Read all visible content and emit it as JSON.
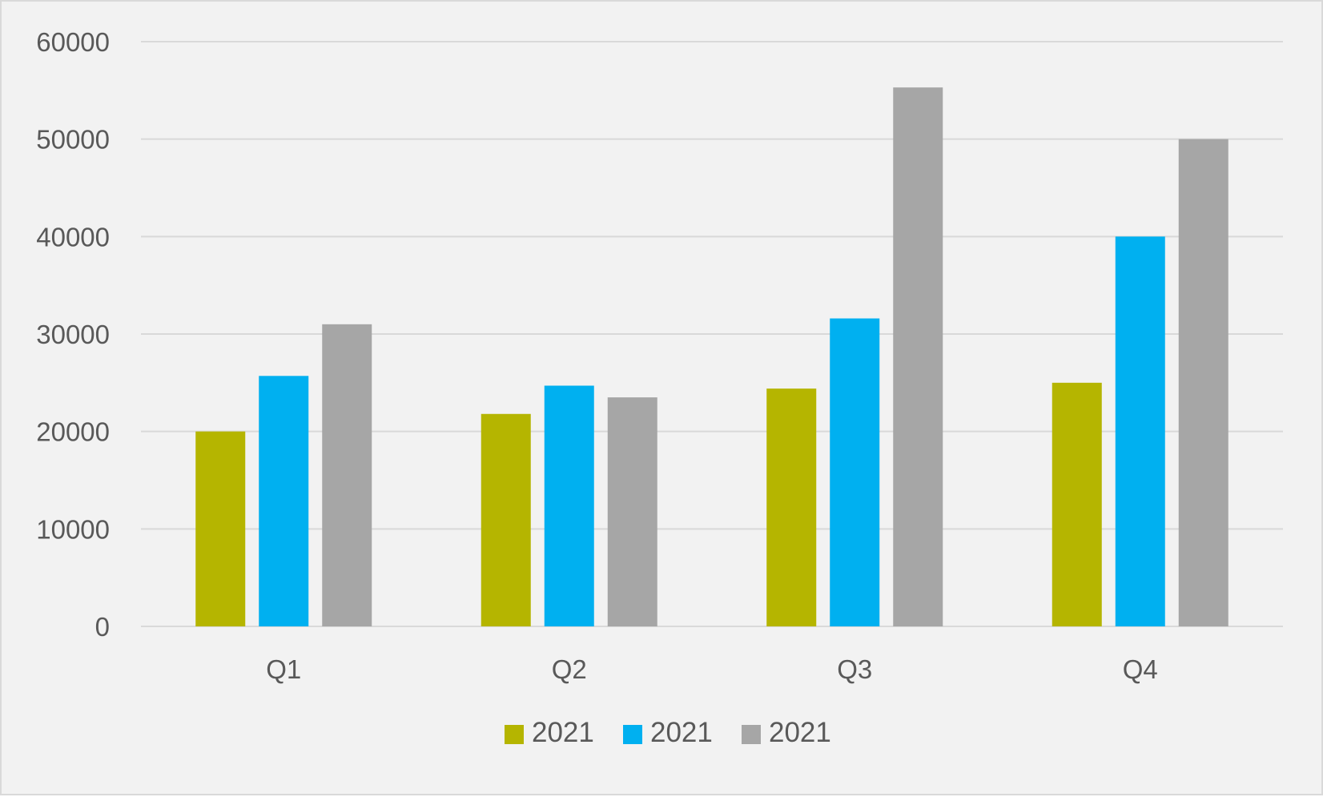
{
  "chart_data": {
    "type": "bar",
    "title": "",
    "xlabel": "",
    "ylabel": "",
    "categories": [
      "Q1",
      "Q2",
      "Q3",
      "Q4"
    ],
    "ylim": [
      0,
      60000
    ],
    "yticks": [
      0,
      10000,
      20000,
      30000,
      40000,
      50000,
      60000
    ],
    "grid": true,
    "legend_position": "bottom",
    "series": [
      {
        "name": "2021",
        "color": "#b5b500",
        "values": [
          20000,
          21800,
          24400,
          25000
        ]
      },
      {
        "name": "2021",
        "color": "#00b0f0",
        "values": [
          25700,
          24700,
          31600,
          40000
        ]
      },
      {
        "name": "2021",
        "color": "#a6a6a6",
        "values": [
          31000,
          23500,
          55300,
          50000
        ]
      }
    ]
  },
  "colors": {
    "background": "#f2f2f2",
    "gridline": "#d9d9d9",
    "text": "#595959"
  }
}
